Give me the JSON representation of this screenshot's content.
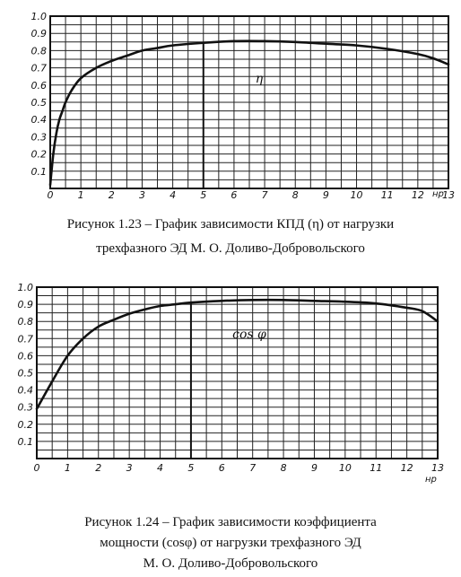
{
  "chart_data": [
    {
      "type": "line",
      "x_unit_label": "нр",
      "curve_label": "η",
      "xlim": [
        0,
        13
      ],
      "ylim": [
        0,
        1.0
      ],
      "x_ticks": [
        "0",
        "1",
        "2",
        "3",
        "4",
        "5",
        "6",
        "7",
        "8",
        "9",
        "10",
        "11",
        "12",
        "13"
      ],
      "y_ticks": [
        "0.1",
        "0.2",
        "0.3",
        "0.4",
        "0.5",
        "0.6",
        "0.7",
        "0.8",
        "0.9",
        "1.0"
      ],
      "grid": true,
      "marker_x": 5,
      "series": [
        {
          "x": [
            0,
            0.1,
            0.2,
            0.3,
            0.4,
            0.5,
            0.7,
            1,
            1.5,
            2,
            2.5,
            3,
            3.5,
            4,
            5,
            6,
            7,
            8,
            9,
            10,
            11,
            12,
            12.5,
            13
          ],
          "y": [
            0.02,
            0.2,
            0.32,
            0.4,
            0.45,
            0.5,
            0.57,
            0.64,
            0.7,
            0.74,
            0.77,
            0.8,
            0.815,
            0.83,
            0.845,
            0.855,
            0.855,
            0.85,
            0.84,
            0.83,
            0.81,
            0.78,
            0.755,
            0.72
          ]
        }
      ],
      "caption": [
        "Рисунок 1.23 – График зависимости КПД (η) от нагрузки",
        "трехфазного ЭД М. О. Доливо-Добровольского"
      ]
    },
    {
      "type": "line",
      "x_unit_label": "нр",
      "curve_label": "cos φ",
      "xlim": [
        0,
        13
      ],
      "ylim": [
        0,
        1.0
      ],
      "x_ticks": [
        "0",
        "1",
        "2",
        "3",
        "4",
        "5",
        "6",
        "7",
        "8",
        "9",
        "10",
        "11",
        "12",
        "13"
      ],
      "y_ticks": [
        "0.1",
        "0.2",
        "0.3",
        "0.4",
        "0.5",
        "0.6",
        "0.7",
        "0.8",
        "0.9",
        "1.0"
      ],
      "grid": true,
      "marker_x": 5,
      "series": [
        {
          "x": [
            0,
            0.5,
            1,
            1.5,
            2,
            2.5,
            3,
            3.5,
            4,
            4.5,
            5,
            6,
            7,
            8,
            9,
            10,
            11,
            12,
            12.5,
            13
          ],
          "y": [
            0.29,
            0.45,
            0.6,
            0.7,
            0.77,
            0.81,
            0.845,
            0.87,
            0.89,
            0.9,
            0.91,
            0.92,
            0.925,
            0.925,
            0.92,
            0.915,
            0.905,
            0.88,
            0.86,
            0.8
          ]
        }
      ],
      "caption": [
        "Рисунок 1.24 – График зависимости коэффициента",
        "мощности (cosφ) от нагрузки трехфазного ЭД",
        "М. О. Доливо-Добровольского"
      ]
    }
  ]
}
